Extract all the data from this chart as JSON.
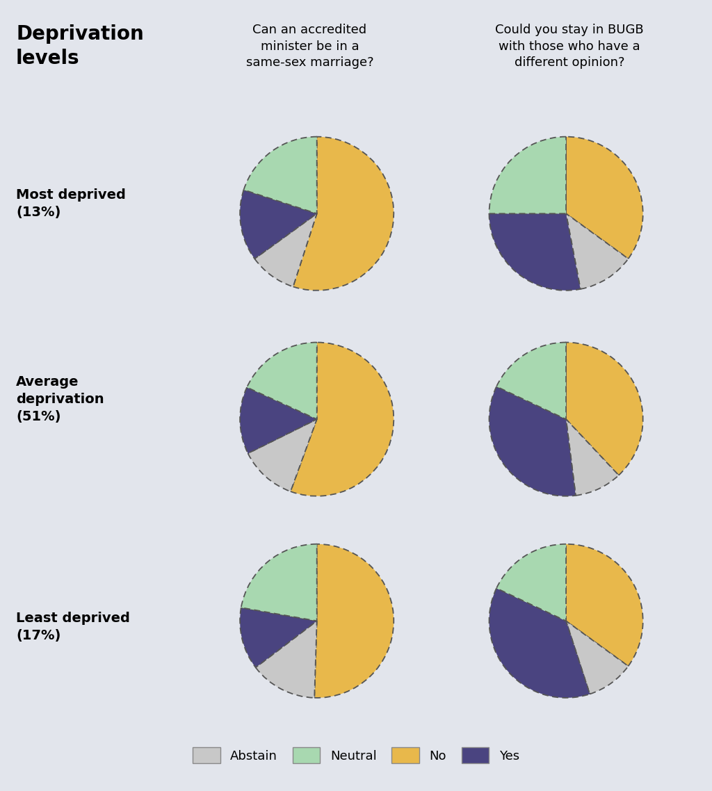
{
  "background_color": "#e2e5ec",
  "pie_bg_color": "#f0f0f0",
  "colors": {
    "Abstain": "#c8c8c8",
    "Neutral": "#a8d8b0",
    "No": "#e8b84b",
    "Yes": "#4a4480"
  },
  "row_labels": [
    "Most deprived\n(13%)",
    "Average\ndeprivation\n(51%)",
    "Least deprived\n(17%)"
  ],
  "col_headers": [
    "Can an accredited\nminister be in a\nsame-sex marriage?",
    "Could you stay in BUGB\nwith those who have a\ndifferent opinion?"
  ],
  "main_title": "Deprivation\nlevels",
  "legend_labels": [
    "Abstain",
    "Neutral",
    "No",
    "Yes"
  ],
  "pie_data": [
    [
      [
        55,
        10,
        15,
        20
      ],
      [
        35,
        12,
        28,
        25
      ]
    ],
    [
      [
        55,
        12,
        14,
        18
      ],
      [
        38,
        10,
        34,
        18
      ]
    ],
    [
      [
        50,
        14,
        13,
        22
      ],
      [
        35,
        10,
        37,
        18
      ]
    ]
  ],
  "pie_order": [
    "No",
    "Abstain",
    "Yes",
    "Neutral"
  ],
  "start_angle": 90,
  "counterclock": false,
  "wedge_edgecolor": "#555555",
  "wedge_linewidth": 1.3,
  "label_fontsize": 14,
  "header_fontsize": 13,
  "title_fontsize": 20,
  "legend_fontsize": 13
}
